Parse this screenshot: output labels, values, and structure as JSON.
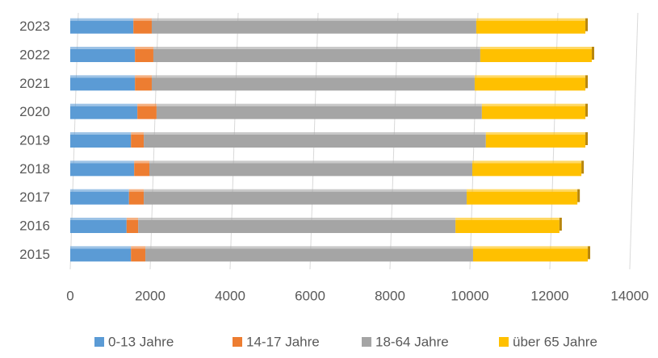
{
  "chart_data": {
    "type": "stacked_barh",
    "categories": [
      "2015",
      "2016",
      "2017",
      "2018",
      "2019",
      "2020",
      "2021",
      "2022",
      "2023"
    ],
    "series": [
      {
        "name": "0-13 Jahre",
        "color": "#5b9bd5",
        "values": [
          1520,
          1410,
          1470,
          1600,
          1520,
          1680,
          1620,
          1620,
          1580
        ]
      },
      {
        "name": "14-17 Jahre",
        "color": "#ed7d31",
        "values": [
          360,
          290,
          370,
          380,
          320,
          480,
          420,
          460,
          460
        ]
      },
      {
        "name": "18-64 Jahre",
        "color": "#a5a5a5",
        "values": [
          8200,
          7940,
          8080,
          8080,
          8560,
          8140,
          8080,
          8180,
          8120
        ]
      },
      {
        "name": "über 65 Jahre",
        "color": "#ffc000",
        "values": [
          2870,
          2600,
          2770,
          2730,
          2490,
          2590,
          2770,
          2790,
          2730
        ]
      }
    ],
    "xlim": [
      0,
      14000
    ],
    "xticks": [
      0,
      2000,
      4000,
      6000,
      8000,
      10000,
      12000,
      14000
    ],
    "grid": true,
    "legend": "bottom"
  }
}
